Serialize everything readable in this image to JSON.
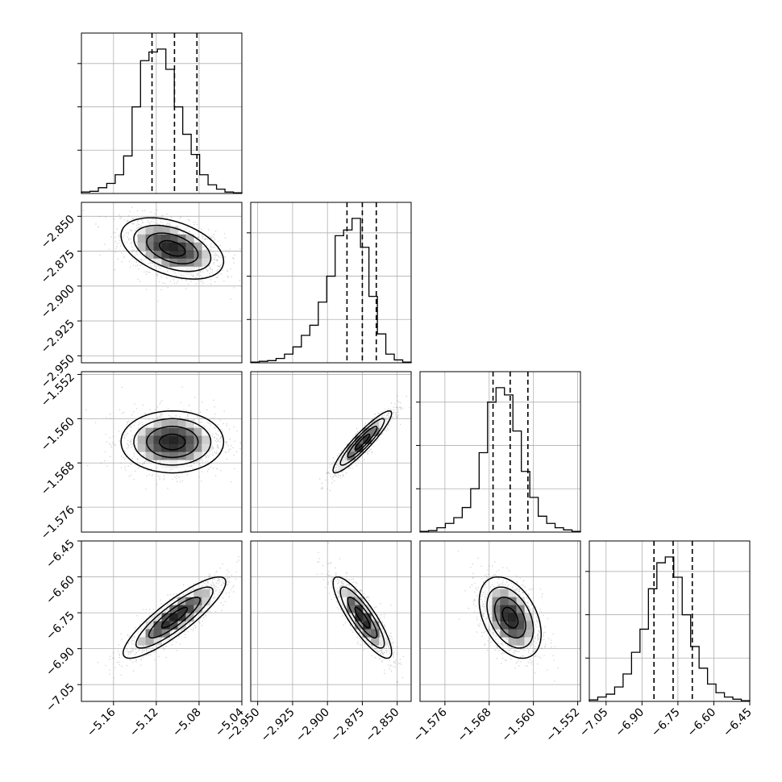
{
  "chart_data": {
    "type": "corner",
    "title": "",
    "grid": true,
    "parameters": [
      {
        "range": [
          -5.19,
          -5.04
        ],
        "ticks": [
          {
            "v": -5.16,
            "label": "−5.16"
          },
          {
            "v": -5.12,
            "label": "−5.12"
          },
          {
            "v": -5.08,
            "label": "−5.08"
          },
          {
            "v": -5.04,
            "label": "−5.04"
          }
        ],
        "quantiles": [
          -5.124,
          -5.103,
          -5.082
        ],
        "hist": [
          0.01,
          0.015,
          0.04,
          0.07,
          0.13,
          0.26,
          0.6,
          0.92,
          0.98,
          1.0,
          0.86,
          0.6,
          0.41,
          0.27,
          0.13,
          0.06,
          0.03,
          0.01,
          0.005
        ]
      },
      {
        "range": [
          -2.955,
          -2.84
        ],
        "ticks": [
          {
            "v": -2.95,
            "label": "−2.950"
          },
          {
            "v": -2.925,
            "label": "−2.925"
          },
          {
            "v": -2.9,
            "label": "−2.900"
          },
          {
            "v": -2.875,
            "label": "−2.875"
          },
          {
            "v": -2.85,
            "label": "−2.850"
          }
        ],
        "quantiles": [
          -2.886,
          -2.875,
          -2.865
        ],
        "hist": [
          0.005,
          0.01,
          0.015,
          0.03,
          0.06,
          0.11,
          0.19,
          0.26,
          0.42,
          0.6,
          0.88,
          0.92,
          1.0,
          0.8,
          0.46,
          0.2,
          0.06,
          0.02,
          0.005
        ]
      },
      {
        "range": [
          -1.5805,
          -1.5515
        ],
        "ticks": [
          {
            "v": -1.576,
            "label": "−1.576"
          },
          {
            "v": -1.568,
            "label": "−1.568"
          },
          {
            "v": -1.56,
            "label": "−1.560"
          },
          {
            "v": -1.552,
            "label": "−1.552"
          }
        ],
        "quantiles": [
          -1.5673,
          -1.5642,
          -1.561
        ],
        "hist": [
          0.005,
          0.01,
          0.03,
          0.06,
          0.1,
          0.17,
          0.3,
          0.55,
          0.9,
          1.0,
          0.95,
          0.7,
          0.42,
          0.24,
          0.11,
          0.06,
          0.03,
          0.015,
          0.005
        ]
      },
      {
        "range": [
          -7.12,
          -6.45
        ],
        "ticks": [
          {
            "v": -7.05,
            "label": "−7.05"
          },
          {
            "v": -6.9,
            "label": "−6.90"
          },
          {
            "v": -6.75,
            "label": "−6.75"
          },
          {
            "v": -6.6,
            "label": "−6.60"
          },
          {
            "v": -6.45,
            "label": "−6.45"
          }
        ],
        "quantiles": [
          -6.85,
          -6.77,
          -6.69
        ],
        "hist": [
          0.01,
          0.03,
          0.05,
          0.1,
          0.19,
          0.34,
          0.5,
          0.78,
          0.96,
          1.0,
          0.86,
          0.6,
          0.38,
          0.23,
          0.12,
          0.06,
          0.03,
          0.015,
          0.005
        ]
      }
    ],
    "pair_panels": [
      {
        "row": 1,
        "col": 0,
        "mean": [
          -5.105,
          -2.873
        ],
        "sd": [
          0.024,
          0.011
        ],
        "rho": -0.42
      },
      {
        "row": 2,
        "col": 0,
        "mean": [
          -5.105,
          -1.5642
        ],
        "sd": [
          0.024,
          0.0028
        ],
        "rho": 0.0
      },
      {
        "row": 2,
        "col": 1,
        "mean": [
          -2.875,
          -1.5642
        ],
        "sd": [
          0.0105,
          0.0028
        ],
        "rho": 0.92
      },
      {
        "row": 3,
        "col": 0,
        "mean": [
          -5.103,
          -6.77
        ],
        "sd": [
          0.024,
          0.085
        ],
        "rho": 0.87
      },
      {
        "row": 3,
        "col": 1,
        "mean": [
          -2.875,
          -6.77
        ],
        "sd": [
          0.0105,
          0.085
        ],
        "rho": -0.85
      },
      {
        "row": 3,
        "col": 2,
        "mean": [
          -1.5642,
          -6.77
        ],
        "sd": [
          0.0028,
          0.085
        ],
        "rho": -0.4
      }
    ],
    "colors": {
      "axes": "#000000",
      "grid": "#b0b0b0",
      "points": "#7f7f7f",
      "density_dark": "#000000",
      "density_light": "#ffffff"
    }
  }
}
